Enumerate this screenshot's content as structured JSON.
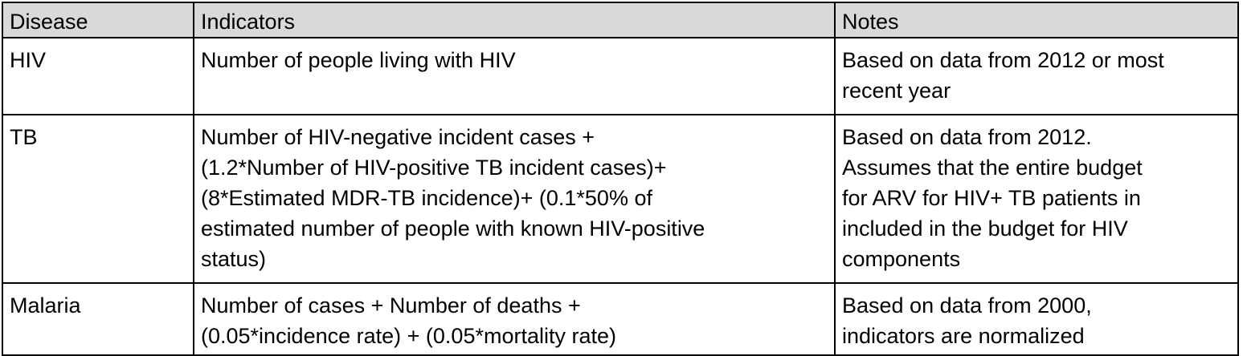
{
  "table": {
    "headers": {
      "disease": "Disease",
      "indicators": "Indicators",
      "notes": "Notes"
    },
    "rows": [
      {
        "disease": "HIV",
        "indicators": [
          "Number of people living with HIV"
        ],
        "notes": [
          "Based on data from 2012 or most",
          "recent year"
        ]
      },
      {
        "disease": "TB",
        "indicators": [
          "Number of HIV-negative incident cases +",
          "(1.2*Number of HIV-positive TB incident cases)+",
          "(8*Estimated MDR-TB incidence)+ (0.1*50% of",
          "estimated number of people with known HIV-positive",
          "status)"
        ],
        "notes": [
          "Based on data from 2012.",
          "Assumes that the entire budget",
          "for ARV for HIV+ TB patients in",
          "included in the budget for HIV",
          "components"
        ]
      },
      {
        "disease": "Malaria",
        "indicators": [
          "Number of cases + Number of deaths +",
          "(0.05*incidence rate) + (0.05*mortality rate)"
        ],
        "notes": [
          "Based on data from 2000,",
          "indicators are normalized"
        ]
      }
    ]
  },
  "colors": {
    "header_background": "#d9d9d9",
    "border": "#000000",
    "text": "#000000"
  }
}
